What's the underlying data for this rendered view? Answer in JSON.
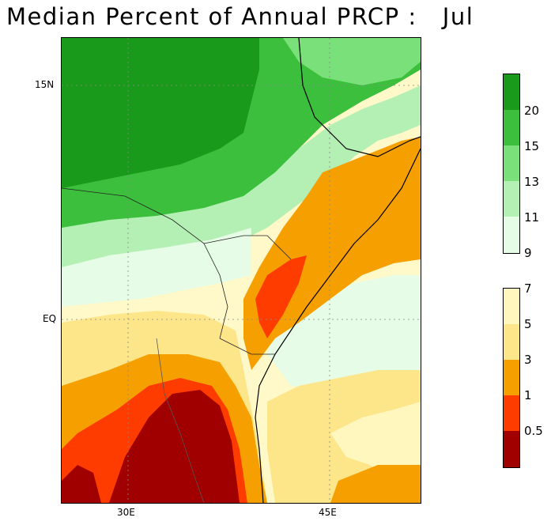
{
  "title": "Median Percent of Annual PRCP :   Jul",
  "axes": {
    "lat_labels": [
      "15N",
      "EQ"
    ],
    "lon_labels": [
      "30E",
      "45E"
    ]
  },
  "legend": {
    "upper_labels": [
      "20",
      "15",
      "13",
      "11",
      "9"
    ],
    "lower_labels": [
      "7",
      "5",
      "3",
      "1",
      "0.5"
    ],
    "upper_colors": [
      "#1a9a1a",
      "#3cbf3c",
      "#7ae07a",
      "#b4f0b4",
      "#e6fce6"
    ],
    "lower_colors": [
      "#fff7bd",
      "#fde68a",
      "#f5a000",
      "#ff3c00",
      "#a00000"
    ]
  }
}
